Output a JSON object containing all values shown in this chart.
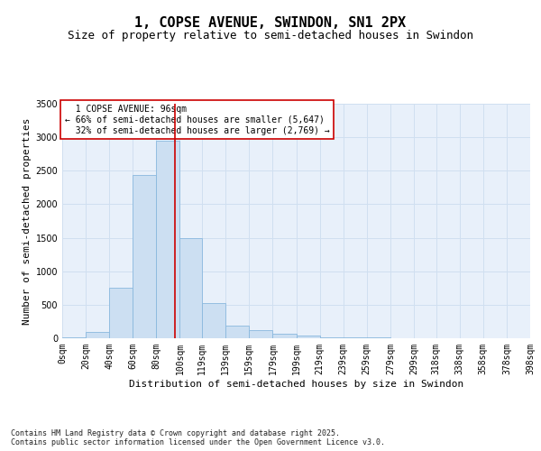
{
  "title": "1, COPSE AVENUE, SWINDON, SN1 2PX",
  "subtitle": "Size of property relative to semi-detached houses in Swindon",
  "xlabel": "Distribution of semi-detached houses by size in Swindon",
  "ylabel": "Number of semi-detached properties",
  "property_size": 96,
  "property_label": "1 COPSE AVENUE: 96sqm",
  "pct_smaller": 66,
  "count_smaller": 5647,
  "pct_larger": 32,
  "count_larger": 2769,
  "bins": [
    0,
    20,
    40,
    60,
    80,
    100,
    119,
    139,
    159,
    179,
    199,
    219,
    239,
    259,
    279,
    299,
    318,
    338,
    358,
    378,
    398
  ],
  "bin_labels": [
    "0sqm",
    "20sqm",
    "40sqm",
    "60sqm",
    "80sqm",
    "100sqm",
    "119sqm",
    "139sqm",
    "159sqm",
    "179sqm",
    "199sqm",
    "219sqm",
    "239sqm",
    "259sqm",
    "279sqm",
    "299sqm",
    "318sqm",
    "338sqm",
    "358sqm",
    "378sqm",
    "398sqm"
  ],
  "counts": [
    15,
    90,
    760,
    2440,
    2950,
    1490,
    520,
    195,
    125,
    65,
    35,
    18,
    12,
    8,
    5,
    4,
    4,
    3,
    3,
    3
  ],
  "bar_color": "#ccdff2",
  "bar_edge_color": "#89b8de",
  "line_color": "#cc0000",
  "grid_color": "#d0dff0",
  "bg_color": "#e8f0fa",
  "box_edge_color": "#cc0000",
  "ylim": [
    0,
    3500
  ],
  "yticks": [
    0,
    500,
    1000,
    1500,
    2000,
    2500,
    3000,
    3500
  ],
  "footer": "Contains HM Land Registry data © Crown copyright and database right 2025.\nContains public sector information licensed under the Open Government Licence v3.0.",
  "title_fontsize": 11,
  "subtitle_fontsize": 9,
  "ylabel_fontsize": 8,
  "xlabel_fontsize": 8,
  "tick_fontsize": 7,
  "annot_fontsize": 7,
  "footer_fontsize": 6
}
